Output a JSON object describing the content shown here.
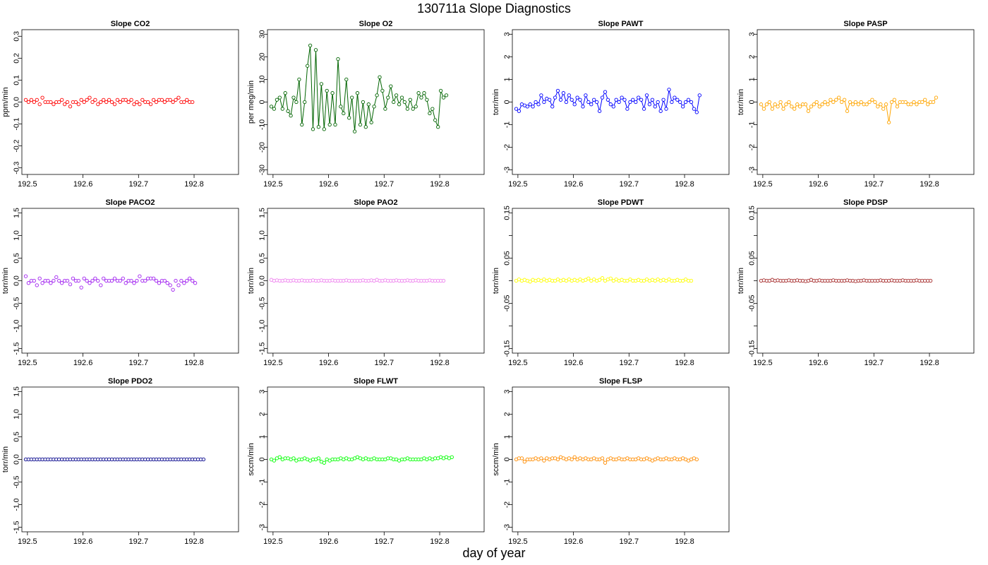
{
  "page": {
    "title": "130711a   Slope Diagnostics",
    "xlabel": "day of year"
  },
  "chart_data": [
    {
      "type": "scatter",
      "title": "Slope CO2",
      "ylabel": "ppm/min",
      "color": "#ff0000",
      "lines": false,
      "xlim": [
        192.49,
        192.88
      ],
      "ylim": [
        -0.33,
        0.33
      ],
      "yticks": [
        -0.3,
        -0.2,
        -0.1,
        0.0,
        0.1,
        0.2,
        0.3
      ],
      "ytick_labels": [
        "-0.3",
        "-0.2",
        "-0.1",
        "0.0",
        "0.1",
        "0.2",
        "0.3"
      ],
      "xticks": [
        192.5,
        192.6,
        192.7,
        192.8
      ],
      "xtick_labels": [
        "192.5",
        "192.6",
        "192.7",
        "192.8"
      ],
      "x_start": 192.497,
      "x_step": 0.005,
      "y": [
        0.01,
        0.0,
        0.01,
        0.0,
        0.01,
        -0.01,
        0.02,
        0.0,
        0.0,
        0.0,
        -0.01,
        0.0,
        0.0,
        0.01,
        -0.01,
        0.0,
        -0.02,
        0.0,
        0.0,
        -0.01,
        0.01,
        0.0,
        0.01,
        0.02,
        0.0,
        0.01,
        -0.01,
        0.0,
        0.01,
        0.0,
        0.01,
        0.0,
        -0.01,
        0.01,
        0.0,
        0.01,
        0.01,
        0.0,
        0.01,
        -0.01,
        0.0,
        -0.01,
        0.01,
        0.0,
        0.0,
        -0.01,
        0.01,
        0.0,
        0.01,
        0.01,
        0.0,
        0.01,
        0.01,
        0.0,
        0.01,
        0.02,
        0.0,
        0.0,
        0.01,
        0.0,
        0.0
      ]
    },
    {
      "type": "line",
      "title": "Slope O2",
      "ylabel": "per meg/min",
      "color": "#006400",
      "lines": true,
      "xlim": [
        192.49,
        192.88
      ],
      "ylim": [
        -32,
        32
      ],
      "yticks": [
        -30,
        -20,
        -10,
        0,
        10,
        20,
        30
      ],
      "ytick_labels": [
        "-30",
        "-20",
        "-10",
        "0",
        "10",
        "20",
        "30"
      ],
      "xticks": [
        192.5,
        192.6,
        192.7,
        192.8
      ],
      "xtick_labels": [
        "192.5",
        "192.6",
        "192.7",
        "192.8"
      ],
      "x_start": 192.497,
      "x_step": 0.005,
      "y": [
        -2,
        -3,
        1,
        2,
        -3,
        4,
        -4,
        -6,
        2,
        0,
        10,
        -10,
        0,
        16,
        25,
        -12,
        23,
        -11,
        8,
        -12,
        5,
        -10,
        4,
        -10,
        19,
        -2,
        -5,
        10,
        -7,
        2,
        -13,
        4,
        -10,
        0,
        -11,
        -1,
        -9,
        -2,
        3,
        11,
        5,
        -3,
        2,
        7,
        0,
        3,
        -1,
        2,
        0,
        -3,
        1,
        -3,
        -2,
        4,
        2,
        4,
        1,
        -5,
        -3,
        -8,
        -11,
        5,
        2,
        3
      ]
    },
    {
      "type": "line",
      "title": "Slope PAWT",
      "ylabel": "torr/min",
      "color": "#0000ff",
      "lines": true,
      "xlim": [
        192.49,
        192.88
      ],
      "ylim": [
        -3.2,
        3.2
      ],
      "yticks": [
        -3,
        -2,
        -1,
        0,
        1,
        2,
        3
      ],
      "ytick_labels": [
        "-3",
        "-2",
        "-1",
        "0",
        "1",
        "2",
        "3"
      ],
      "xticks": [
        192.5,
        192.6,
        192.7,
        192.8
      ],
      "xtick_labels": [
        "192.5",
        "192.6",
        "192.7",
        "192.8"
      ],
      "x_start": 192.497,
      "x_step": 0.005,
      "y": [
        -0.3,
        -0.4,
        -0.1,
        -0.15,
        -0.2,
        -0.1,
        -0.2,
        0.0,
        -0.1,
        0.3,
        0.0,
        0.15,
        0.1,
        -0.2,
        0.2,
        0.5,
        0.1,
        0.4,
        0.0,
        0.3,
        0.1,
        -0.1,
        0.2,
        0.1,
        -0.2,
        0.3,
        0.0,
        -0.1,
        0.1,
        0.0,
        -0.4,
        0.2,
        0.45,
        0.1,
        -0.1,
        -0.2,
        0.1,
        0.0,
        0.2,
        0.1,
        -0.3,
        0.0,
        0.1,
        0.0,
        0.2,
        0.1,
        -0.3,
        0.3,
        -0.1,
        0.1,
        -0.2,
        0.0,
        -0.4,
        0.1,
        -0.3,
        0.55,
        0.0,
        0.2,
        0.1,
        0.0,
        -0.2,
        0.0,
        0.1,
        0.0,
        -0.3,
        -0.45,
        0.3
      ]
    },
    {
      "type": "line",
      "title": "Slope PASP",
      "ylabel": "torr/min",
      "color": "#ffa500",
      "lines": true,
      "xlim": [
        192.49,
        192.88
      ],
      "ylim": [
        -3.2,
        3.2
      ],
      "yticks": [
        -3,
        -2,
        -1,
        0,
        1,
        2,
        3
      ],
      "ytick_labels": [
        "-3",
        "-2",
        "-1",
        "0",
        "1",
        "2",
        "3"
      ],
      "xticks": [
        192.5,
        192.6,
        192.7,
        192.8
      ],
      "xtick_labels": [
        "192.5",
        "192.6",
        "192.7",
        "192.8"
      ],
      "x_start": 192.497,
      "x_step": 0.005,
      "y": [
        -0.1,
        -0.3,
        -0.1,
        0.0,
        -0.3,
        -0.1,
        -0.2,
        0.0,
        -0.3,
        -0.1,
        0.0,
        -0.2,
        -0.3,
        -0.1,
        -0.2,
        -0.1,
        -0.1,
        -0.4,
        -0.2,
        -0.1,
        0.0,
        -0.2,
        -0.1,
        0.0,
        -0.1,
        0.1,
        0.0,
        0.1,
        0.2,
        0.0,
        0.1,
        -0.4,
        0.0,
        -0.1,
        0.0,
        -0.1,
        0.0,
        -0.1,
        -0.1,
        0.0,
        0.1,
        0.0,
        -0.2,
        -0.1,
        -0.3,
        -0.1,
        -0.9,
        0.0,
        0.1,
        -0.2,
        0.0,
        0.0,
        0.0,
        -0.1,
        -0.1,
        0.0,
        -0.1,
        0.0,
        0.0,
        0.1,
        -0.1,
        0.0,
        0.0,
        0.2
      ]
    },
    {
      "type": "scatter",
      "title": "Slope PACO2",
      "ylabel": "torr/min",
      "color": "#a020f0",
      "lines": false,
      "xlim": [
        192.49,
        192.88
      ],
      "ylim": [
        -1.6,
        1.6
      ],
      "yticks": [
        -1.5,
        -1.0,
        -0.5,
        0.0,
        0.5,
        1.0,
        1.5
      ],
      "ytick_labels": [
        "-1.5",
        "-1.0",
        "-0.5",
        "0.0",
        "0.5",
        "1.0",
        "1.5"
      ],
      "xticks": [
        192.5,
        192.6,
        192.7,
        192.8
      ],
      "xtick_labels": [
        "192.5",
        "192.6",
        "192.7",
        "192.8"
      ],
      "x_start": 192.497,
      "x_step": 0.005,
      "y": [
        0.1,
        -0.05,
        0.0,
        0.0,
        -0.1,
        0.05,
        -0.05,
        0.0,
        0.0,
        -0.05,
        0.0,
        0.08,
        0.0,
        -0.05,
        0.0,
        0.0,
        -0.08,
        0.05,
        0.0,
        0.0,
        -0.15,
        0.05,
        0.0,
        -0.05,
        0.0,
        0.05,
        0.0,
        -0.1,
        0.05,
        0.0,
        0.0,
        0.0,
        0.05,
        0.0,
        0.0,
        0.05,
        -0.05,
        0.0,
        0.0,
        -0.05,
        0.0,
        0.1,
        0.0,
        0.0,
        0.05,
        0.05,
        0.05,
        0.0,
        -0.05,
        0.0,
        0.0,
        -0.05,
        -0.1,
        -0.2,
        0.0,
        -0.1,
        0.0,
        -0.05,
        0.0,
        0.05,
        0.0,
        -0.05
      ]
    },
    {
      "type": "scatter",
      "title": "Slope PAO2",
      "ylabel": "torr/min",
      "color": "#ee82ee",
      "lines": false,
      "xlim": [
        192.49,
        192.88
      ],
      "ylim": [
        -1.6,
        1.6
      ],
      "yticks": [
        -1.5,
        -1.0,
        -0.5,
        0.0,
        0.5,
        1.0,
        1.5
      ],
      "ytick_labels": [
        "-1.5",
        "-1.0",
        "-0.5",
        "0.0",
        "0.5",
        "1.0",
        "1.5"
      ],
      "xticks": [
        192.5,
        192.6,
        192.7,
        192.8
      ],
      "xtick_labels": [
        "192.5",
        "192.6",
        "192.7",
        "192.8"
      ],
      "x_start": 192.497,
      "x_step": 0.005,
      "y": [
        0.02,
        0.0,
        0.01,
        0.0,
        0.0,
        0.01,
        0.0,
        0.0,
        0.01,
        0.0,
        0.0,
        0.01,
        0.0,
        0.0,
        0.0,
        0.01,
        0.0,
        0.0,
        0.01,
        0.0,
        0.0,
        0.0,
        0.01,
        0.0,
        0.0,
        0.0,
        0.0,
        0.01,
        0.0,
        0.0,
        0.0,
        0.0,
        0.0,
        0.01,
        0.0,
        0.0,
        0.01,
        0.0,
        0.02,
        0.0,
        0.0,
        0.01,
        0.0,
        0.0,
        0.0,
        0.01,
        0.0,
        0.0,
        0.0,
        0.01,
        0.0,
        0.0,
        0.01,
        0.0,
        0.0,
        0.0,
        0.0,
        0.01,
        0.0,
        0.0,
        0.0,
        0.0,
        0.0
      ]
    },
    {
      "type": "scatter",
      "title": "Slope PDWT",
      "ylabel": "torr/min",
      "color": "#ffff00",
      "lines": false,
      "xlim": [
        192.49,
        192.88
      ],
      "ylim": [
        -0.16,
        0.16
      ],
      "yticks": [
        -0.15,
        -0.05,
        0.05,
        0.15
      ],
      "ytick_labels": [
        "-0.15",
        "-0.05",
        "0.05",
        "0.15"
      ],
      "minor_yticks": [
        -0.1,
        0.0,
        0.1
      ],
      "xticks": [
        192.5,
        192.6,
        192.7,
        192.8
      ],
      "xtick_labels": [
        "192.5",
        "192.6",
        "192.7",
        "192.8"
      ],
      "x_start": 192.497,
      "x_step": 0.005,
      "y": [
        0.0,
        0.003,
        0.0,
        0.002,
        0.0,
        -0.002,
        0.002,
        0.0,
        0.002,
        0.0,
        0.003,
        0.0,
        0.002,
        0.0,
        0.0,
        0.003,
        0.0,
        0.002,
        0.0,
        0.003,
        0.0,
        0.002,
        0.0,
        0.003,
        0.0,
        0.002,
        0.005,
        0.0,
        0.003,
        0.0,
        0.002,
        0.006,
        0.0,
        0.003,
        0.005,
        0.0,
        0.003,
        0.0,
        0.002,
        0.0,
        0.0,
        0.003,
        0.0,
        0.0,
        0.002,
        0.0,
        0.0,
        0.003,
        0.0,
        0.002,
        0.0,
        0.003,
        0.0,
        0.002,
        0.0,
        0.003,
        0.0,
        0.0,
        0.002,
        0.0,
        0.0,
        0.003,
        0.0,
        0.0
      ]
    },
    {
      "type": "scatter",
      "title": "Slope PDSP",
      "ylabel": "torr/min",
      "color": "#a52a2a",
      "lines": false,
      "xlim": [
        192.49,
        192.88
      ],
      "ylim": [
        -0.16,
        0.16
      ],
      "yticks": [
        -0.15,
        -0.05,
        0.05,
        0.15
      ],
      "ytick_labels": [
        "-0.15",
        "-0.05",
        "0.05",
        "0.15"
      ],
      "minor_yticks": [
        -0.1,
        0.0,
        0.1
      ],
      "xticks": [
        192.5,
        192.6,
        192.7,
        192.8
      ],
      "xtick_labels": [
        "192.5",
        "192.6",
        "192.7",
        "192.8"
      ],
      "x_start": 192.497,
      "x_step": 0.005,
      "y": [
        0.0,
        0.001,
        0.0,
        0.0,
        0.002,
        0.0,
        0.001,
        0.0,
        0.0,
        0.0,
        0.001,
        0.0,
        0.0,
        0.001,
        0.0,
        0.0,
        -0.001,
        0.0,
        0.002,
        0.0,
        0.0,
        0.001,
        0.0,
        0.0,
        0.0,
        0.0,
        0.001,
        0.0,
        0.0,
        0.0,
        0.0,
        0.001,
        0.0,
        0.0,
        -0.001,
        0.0,
        0.0,
        0.001,
        0.0,
        0.0,
        0.0,
        0.0,
        0.0,
        0.001,
        0.0,
        0.0,
        0.0,
        0.001,
        0.0,
        0.0,
        0.0,
        0.001,
        0.0,
        0.0,
        0.0,
        0.0,
        0.001,
        0.0,
        0.0,
        0.0,
        0.0,
        0.0
      ]
    },
    {
      "type": "scatter",
      "title": "Slope PDO2",
      "ylabel": "torr/min",
      "color": "#00008b",
      "lines": false,
      "xlim": [
        192.49,
        192.88
      ],
      "ylim": [
        -1.6,
        1.6
      ],
      "yticks": [
        -1.5,
        -1.0,
        -0.5,
        0.0,
        0.5,
        1.0,
        1.5
      ],
      "ytick_labels": [
        "-1.5",
        "-1.0",
        "-0.5",
        "0.0",
        "0.5",
        "1.0",
        "1.5"
      ],
      "xticks": [
        192.5,
        192.6,
        192.7,
        192.8
      ],
      "xtick_labels": [
        "192.5",
        "192.6",
        "192.7",
        "192.8"
      ],
      "x_start": 192.497,
      "x_step": 0.005,
      "y": [
        0.0,
        0.0,
        0.0,
        0.0,
        0.0,
        0.0,
        0.0,
        0.0,
        0.0,
        0.0,
        0.0,
        0.0,
        0.0,
        0.0,
        0.0,
        0.0,
        0.0,
        0.0,
        0.0,
        0.0,
        0.0,
        0.0,
        0.0,
        0.0,
        0.0,
        0.0,
        0.0,
        0.0,
        0.0,
        0.0,
        0.0,
        0.0,
        0.0,
        0.0,
        0.0,
        0.0,
        0.0,
        0.0,
        0.0,
        0.0,
        0.0,
        0.0,
        0.0,
        0.0,
        0.0,
        0.0,
        0.0,
        0.0,
        0.0,
        0.0,
        0.0,
        0.0,
        0.0,
        0.0,
        0.0,
        0.0,
        0.0,
        0.0,
        0.0,
        0.0,
        0.0,
        0.0,
        0.0,
        0.0,
        0.0
      ]
    },
    {
      "type": "line",
      "title": "Slope FLWT",
      "ylabel": "sccm/min",
      "color": "#00ff00",
      "lines": true,
      "xlim": [
        192.49,
        192.88
      ],
      "ylim": [
        -3.2,
        3.2
      ],
      "yticks": [
        -3,
        -2,
        -1,
        0,
        1,
        2,
        3
      ],
      "ytick_labels": [
        "-3",
        "-2",
        "-1",
        "0",
        "1",
        "2",
        "3"
      ],
      "xticks": [
        192.5,
        192.6,
        192.7,
        192.8
      ],
      "xtick_labels": [
        "192.5",
        "192.6",
        "192.7",
        "192.8"
      ],
      "x_start": 192.497,
      "x_step": 0.005,
      "y": [
        0.0,
        -0.05,
        0.05,
        0.1,
        0.0,
        0.05,
        0.05,
        0.0,
        0.05,
        -0.05,
        0.0,
        0.0,
        0.05,
        0.0,
        -0.05,
        0.0,
        0.0,
        0.05,
        -0.1,
        -0.15,
        0.0,
        -0.05,
        0.0,
        0.0,
        0.0,
        0.05,
        0.0,
        0.05,
        0.0,
        0.0,
        0.05,
        0.1,
        0.05,
        0.0,
        0.05,
        0.0,
        0.0,
        0.05,
        0.0,
        0.0,
        0.0,
        0.0,
        0.05,
        0.05,
        0.0,
        0.0,
        -0.05,
        0.0,
        0.0,
        0.05,
        0.0,
        0.0,
        0.0,
        0.0,
        0.0,
        0.05,
        0.0,
        0.05,
        0.0,
        0.05,
        0.05,
        0.1,
        0.05,
        0.1,
        0.05,
        0.1
      ]
    },
    {
      "type": "line",
      "title": "Slope FLSP",
      "ylabel": "sccm/min",
      "color": "#ff8c00",
      "lines": true,
      "xlim": [
        192.49,
        192.88
      ],
      "ylim": [
        -3.2,
        3.2
      ],
      "yticks": [
        -3,
        -2,
        -1,
        0,
        1,
        2,
        3
      ],
      "ytick_labels": [
        "-3",
        "-2",
        "-1",
        "0",
        "1",
        "2",
        "3"
      ],
      "xticks": [
        192.5,
        192.6,
        192.7,
        192.8
      ],
      "xtick_labels": [
        "192.5",
        "192.6",
        "192.7",
        "192.8"
      ],
      "x_start": 192.497,
      "x_step": 0.005,
      "y": [
        0.0,
        0.05,
        0.05,
        -0.1,
        0.0,
        0.0,
        0.0,
        0.05,
        0.0,
        0.05,
        -0.05,
        0.05,
        0.0,
        0.05,
        0.05,
        0.0,
        0.1,
        0.05,
        0.0,
        0.05,
        0.0,
        0.1,
        0.0,
        0.05,
        0.0,
        0.05,
        0.0,
        0.0,
        0.05,
        0.0,
        0.0,
        0.05,
        -0.15,
        0.0,
        0.05,
        0.0,
        0.0,
        0.05,
        0.0,
        0.0,
        0.05,
        0.0,
        0.0,
        0.0,
        0.05,
        0.0,
        0.0,
        0.05,
        0.0,
        -0.05,
        0.0,
        0.05,
        0.0,
        0.0,
        0.05,
        0.0,
        0.0,
        0.05,
        0.0,
        0.0,
        0.05,
        0.0,
        -0.05,
        0.0,
        0.05,
        0.0
      ]
    }
  ]
}
